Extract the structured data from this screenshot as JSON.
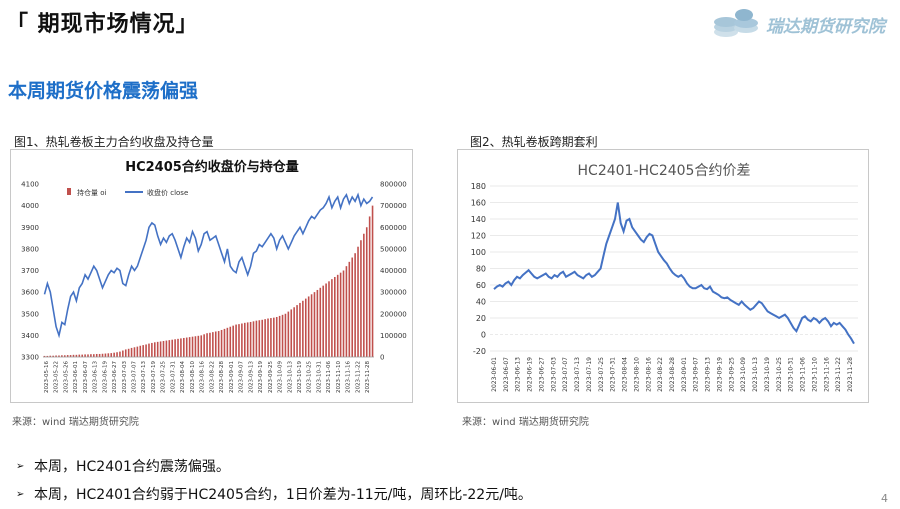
{
  "header": {
    "title": "「 期现市场情况」"
  },
  "logo": {
    "text": "瑞达期货研究院"
  },
  "section": {
    "title": "本周期货价格震荡偏强"
  },
  "figures": [
    {
      "caption": "图1、热轧卷板主力合约收盘及持仓量",
      "source": "来源：wind   瑞达期货研究院"
    },
    {
      "caption": "图2、热轧卷板跨期套利",
      "source": "来源：wind   瑞达期货研究院"
    }
  ],
  "bullets": [
    "本周，HC2401合约震荡偏强。",
    "本周，HC2401合约弱于HC2405合约，1日价差为-11元/吨，周环比-22元/吨。"
  ],
  "page_number": "4",
  "colors": {
    "accent": "#1e6fc8",
    "bar": "#c0504d",
    "line": "#4472c4"
  },
  "chart_data": [
    {
      "type": "bar",
      "title": "HC2405合约收盘价与持仓量",
      "legend": [
        "持仓量 oi",
        "收盘价 close"
      ],
      "legend_position": "top-left",
      "grid": false,
      "ylim_left": [
        3300,
        4100
      ],
      "yticks_left": [
        "4100",
        "4000",
        "3900",
        "3800",
        "3700",
        "3600",
        "3500",
        "3400",
        "3300"
      ],
      "ylim_right": [
        0,
        800000
      ],
      "yticks_right": [
        "800000",
        "700000",
        "600000",
        "500000",
        "400000",
        "300000",
        "200000",
        "100000",
        "0"
      ],
      "x_tick_labels": [
        "2023-05-16",
        "2023-05-22",
        "2023-05-26",
        "2023-06-01",
        "2023-06-07",
        "2023-06-13",
        "2023-06-19",
        "2023-06-27",
        "2023-07-03",
        "2023-07-07",
        "2023-07-13",
        "2023-07-19",
        "2023-07-25",
        "2023-07-31",
        "2023-08-04",
        "2023-08-10",
        "2023-08-16",
        "2023-08-22",
        "2023-08-28",
        "2023-09-01",
        "2023-09-07",
        "2023-09-13",
        "2023-09-19",
        "2023-09-25",
        "2023-10-09",
        "2023-10-13",
        "2023-10-19",
        "2023-10-25",
        "2023-10-31",
        "2023-11-06",
        "2023-11-10",
        "2023-11-16",
        "2023-11-22",
        "2023-11-28"
      ],
      "series": [
        {
          "name": "持仓量 oi",
          "type": "bar",
          "axis": "right",
          "values": [
            5000,
            5000,
            6000,
            6000,
            7000,
            7000,
            8000,
            8000,
            9000,
            9000,
            10000,
            10000,
            11000,
            11000,
            12000,
            12000,
            13000,
            13000,
            14000,
            14000,
            15000,
            16000,
            17000,
            18000,
            20000,
            22000,
            25000,
            30000,
            35000,
            38000,
            42000,
            45000,
            48000,
            52000,
            55000,
            58000,
            62000,
            65000,
            68000,
            70000,
            72000,
            74000,
            76000,
            78000,
            80000,
            82000,
            84000,
            86000,
            88000,
            90000,
            92000,
            94000,
            96000,
            98000,
            100000,
            105000,
            110000,
            112000,
            115000,
            118000,
            120000,
            125000,
            130000,
            135000,
            140000,
            145000,
            150000,
            152000,
            155000,
            158000,
            160000,
            162000,
            165000,
            168000,
            170000,
            172000,
            175000,
            178000,
            180000,
            182000,
            185000,
            190000,
            195000,
            200000,
            210000,
            220000,
            230000,
            240000,
            250000,
            260000,
            270000,
            280000,
            290000,
            300000,
            310000,
            320000,
            330000,
            340000,
            350000,
            360000,
            370000,
            380000,
            390000,
            400000,
            420000,
            440000,
            460000,
            480000,
            510000,
            540000,
            570000,
            600000,
            650000,
            700000
          ]
        },
        {
          "name": "收盘价 close",
          "type": "line",
          "axis": "left",
          "values": [
            3590,
            3640,
            3600,
            3520,
            3440,
            3400,
            3460,
            3450,
            3520,
            3580,
            3600,
            3560,
            3620,
            3640,
            3680,
            3660,
            3690,
            3720,
            3700,
            3660,
            3620,
            3650,
            3680,
            3700,
            3690,
            3710,
            3700,
            3640,
            3630,
            3680,
            3720,
            3700,
            3720,
            3760,
            3800,
            3840,
            3900,
            3920,
            3910,
            3860,
            3820,
            3850,
            3830,
            3860,
            3870,
            3840,
            3800,
            3760,
            3810,
            3850,
            3830,
            3880,
            3850,
            3790,
            3820,
            3870,
            3880,
            3840,
            3850,
            3860,
            3820,
            3780,
            3740,
            3800,
            3720,
            3700,
            3690,
            3740,
            3760,
            3720,
            3680,
            3720,
            3780,
            3790,
            3820,
            3810,
            3830,
            3850,
            3870,
            3850,
            3800,
            3840,
            3860,
            3830,
            3800,
            3830,
            3860,
            3880,
            3900,
            3870,
            3900,
            3930,
            3950,
            3940,
            3960,
            3980,
            3990,
            4010,
            4040,
            3990,
            4020,
            4040,
            3990,
            4030,
            4050,
            4010,
            4040,
            4020,
            4050,
            4000,
            4030,
            4010,
            4020,
            4040
          ]
        }
      ]
    },
    {
      "type": "line",
      "title": "HC2401-HC2405合约价差",
      "grid": true,
      "ylim": [
        -20,
        180
      ],
      "yticks": [
        "180",
        "160",
        "140",
        "120",
        "100",
        "80",
        "60",
        "40",
        "20",
        "0",
        "-20"
      ],
      "x_tick_labels": [
        "2023-06-01",
        "2023-06-07",
        "2023-06-13",
        "2023-06-19",
        "2023-06-27",
        "2023-07-03",
        "2023-07-07",
        "2023-07-13",
        "2023-07-19",
        "2023-07-25",
        "2023-07-31",
        "2023-08-04",
        "2023-08-10",
        "2023-08-16",
        "2023-08-22",
        "2023-08-28",
        "2023-09-01",
        "2023-09-07",
        "2023-09-13",
        "2023-09-19",
        "2023-09-25",
        "2023-10-09",
        "2023-10-13",
        "2023-10-19",
        "2023-10-25",
        "2023-10-31",
        "2023-11-06",
        "2023-11-10",
        "2023-11-16",
        "2023-11-22",
        "2023-11-28"
      ],
      "series": [
        {
          "name": "",
          "values": [
            55,
            58,
            60,
            58,
            62,
            64,
            60,
            66,
            70,
            68,
            72,
            75,
            78,
            74,
            70,
            68,
            70,
            72,
            74,
            70,
            68,
            72,
            70,
            74,
            76,
            70,
            72,
            74,
            76,
            72,
            70,
            68,
            72,
            74,
            70,
            72,
            76,
            80,
            95,
            110,
            120,
            130,
            140,
            160,
            135,
            125,
            138,
            140,
            130,
            125,
            120,
            115,
            112,
            118,
            122,
            120,
            110,
            100,
            95,
            90,
            86,
            80,
            75,
            72,
            70,
            72,
            68,
            62,
            58,
            56,
            56,
            58,
            60,
            56,
            55,
            58,
            52,
            50,
            48,
            45,
            44,
            45,
            42,
            40,
            38,
            36,
            40,
            36,
            33,
            30,
            32,
            36,
            40,
            38,
            33,
            28,
            26,
            24,
            22,
            20,
            22,
            24,
            20,
            14,
            8,
            4,
            12,
            20,
            22,
            18,
            16,
            20,
            18,
            14,
            18,
            20,
            16,
            10,
            14,
            12,
            14,
            10,
            6,
            0,
            -5,
            -11
          ]
        }
      ]
    }
  ]
}
